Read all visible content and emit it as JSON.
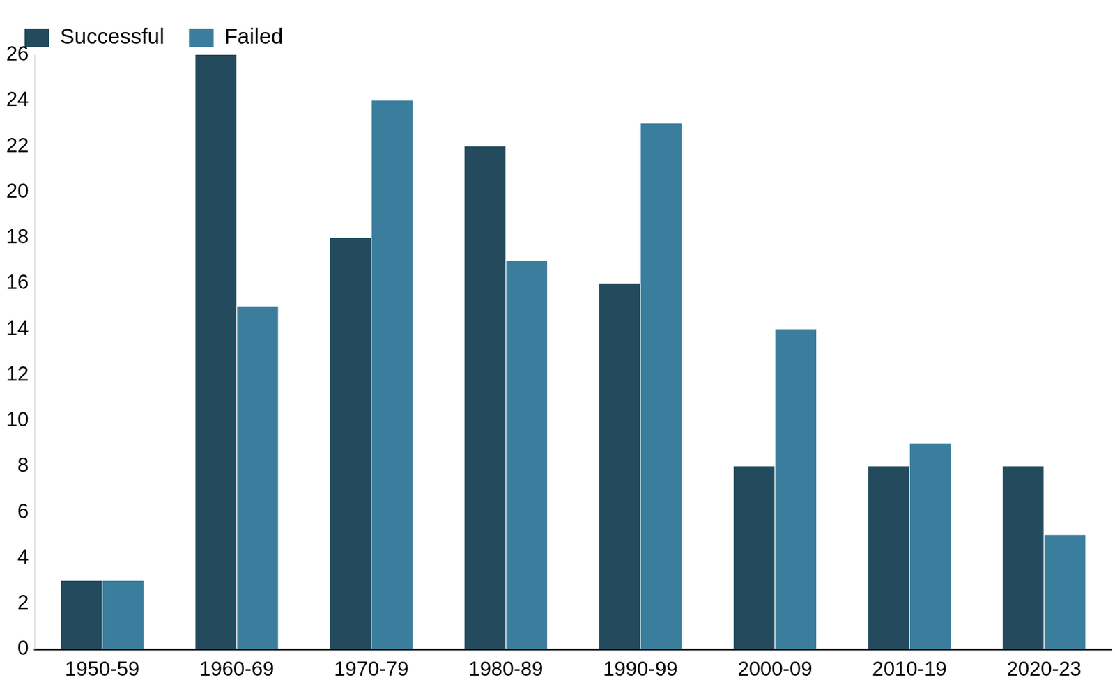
{
  "chart_data": {
    "type": "bar",
    "categories": [
      "1950-59",
      "1960-69",
      "1970-79",
      "1980-89",
      "1990-99",
      "2000-09",
      "2010-19",
      "2020-23"
    ],
    "series": [
      {
        "name": "Successful",
        "color": "#234b5d",
        "values": [
          3,
          26,
          18,
          22,
          16,
          8,
          8,
          8
        ]
      },
      {
        "name": "Failed",
        "color": "#3b7d9c",
        "values": [
          3,
          15,
          24,
          17,
          23,
          14,
          9,
          5
        ]
      }
    ],
    "ylim": [
      0,
      26
    ],
    "yticks": [
      0,
      2,
      4,
      6,
      8,
      10,
      12,
      14,
      16,
      18,
      20,
      22,
      24,
      26
    ],
    "grid": false,
    "legend": "top-left"
  }
}
